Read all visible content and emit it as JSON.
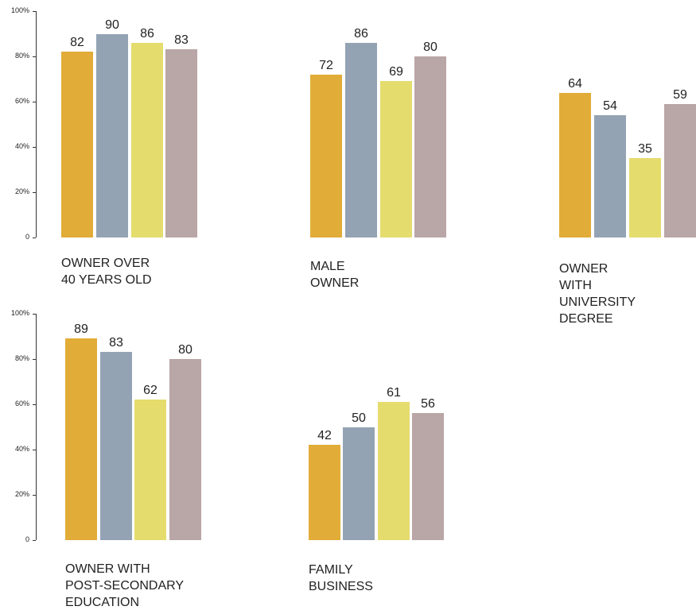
{
  "colors": {
    "series_1": "#E2AC38",
    "series_2": "#94A3B4",
    "series_3": "#E5DC6E",
    "series_4": "#B9A6A6",
    "axis": "#333333"
  },
  "chart_data": [
    {
      "type": "bar",
      "caption": "OWNER OVER\n40 YEARS OLD",
      "values": [
        82,
        90,
        86,
        83
      ],
      "ylim": [
        0,
        100
      ],
      "yticks": [
        "0",
        "20%",
        "40%",
        "60%",
        "80%",
        "100%"
      ],
      "axis_visible": true,
      "grid": false
    },
    {
      "type": "bar",
      "caption": "MALE OWNER",
      "values": [
        72,
        86,
        69,
        80
      ],
      "ylim": [
        0,
        100
      ],
      "axis_visible": false,
      "grid": false
    },
    {
      "type": "bar",
      "caption": "OWNER WITH\nUNIVERSITY DEGREE",
      "values": [
        64,
        54,
        35,
        59
      ],
      "ylim": [
        0,
        100
      ],
      "axis_visible": false,
      "grid": false
    },
    {
      "type": "bar",
      "caption": "OWNER WITH\nPOST-SECONDARY\nEDUCATION",
      "values": [
        89,
        83,
        62,
        80
      ],
      "ylim": [
        0,
        100
      ],
      "yticks": [
        "0",
        "20%",
        "40%",
        "60%",
        "80%",
        "100%"
      ],
      "axis_visible": true,
      "grid": false
    },
    {
      "type": "bar",
      "caption": "FAMILY BUSINESS",
      "values": [
        42,
        50,
        61,
        56
      ],
      "ylim": [
        0,
        100
      ],
      "axis_visible": false,
      "grid": false
    }
  ]
}
